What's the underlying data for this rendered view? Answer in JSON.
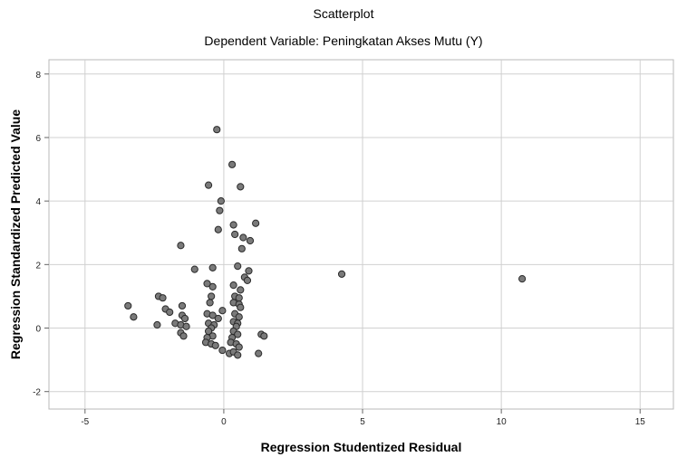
{
  "chart_data": {
    "type": "scatter",
    "title": "Scatterplot",
    "subtitle": "Dependent Variable: Peningkatan Akses Mutu (Y)",
    "xlabel": "Regression Studentized Residual",
    "ylabel": "Regression Standardized Predicted Value",
    "xlim": [
      -6.3,
      16.2
    ],
    "ylim": [
      -2.55,
      8.45
    ],
    "x_ticks": [
      -5,
      0,
      5,
      10,
      15
    ],
    "y_ticks": [
      -2,
      0,
      2,
      4,
      6,
      8
    ],
    "grid": true,
    "point_color": "#7a7a7a",
    "point_edge_color": "#2a2a2a",
    "points": [
      {
        "x": -0.25,
        "y": 6.25
      },
      {
        "x": 0.3,
        "y": 5.15
      },
      {
        "x": -0.55,
        "y": 4.5
      },
      {
        "x": 0.6,
        "y": 4.45
      },
      {
        "x": -0.1,
        "y": 4.0
      },
      {
        "x": -0.15,
        "y": 3.7
      },
      {
        "x": 0.35,
        "y": 3.25
      },
      {
        "x": 1.15,
        "y": 3.3
      },
      {
        "x": -0.2,
        "y": 3.1
      },
      {
        "x": 0.4,
        "y": 2.95
      },
      {
        "x": 0.7,
        "y": 2.85
      },
      {
        "x": 0.95,
        "y": 2.75
      },
      {
        "x": -1.55,
        "y": 2.6
      },
      {
        "x": 0.65,
        "y": 2.5
      },
      {
        "x": -0.4,
        "y": 1.9
      },
      {
        "x": 0.5,
        "y": 1.95
      },
      {
        "x": -1.05,
        "y": 1.85
      },
      {
        "x": 0.9,
        "y": 1.8
      },
      {
        "x": 0.75,
        "y": 1.6
      },
      {
        "x": 0.85,
        "y": 1.5
      },
      {
        "x": 4.25,
        "y": 1.7
      },
      {
        "x": 10.75,
        "y": 1.55
      },
      {
        "x": -0.6,
        "y": 1.4
      },
      {
        "x": 0.35,
        "y": 1.35
      },
      {
        "x": -0.4,
        "y": 1.3
      },
      {
        "x": 0.6,
        "y": 1.2
      },
      {
        "x": -0.45,
        "y": 1.0
      },
      {
        "x": 0.4,
        "y": 1.0
      },
      {
        "x": 0.55,
        "y": 0.95
      },
      {
        "x": -2.35,
        "y": 1.0
      },
      {
        "x": -2.2,
        "y": 0.95
      },
      {
        "x": -3.45,
        "y": 0.7
      },
      {
        "x": -1.5,
        "y": 0.7
      },
      {
        "x": -2.1,
        "y": 0.6
      },
      {
        "x": -1.95,
        "y": 0.5
      },
      {
        "x": -0.5,
        "y": 0.8
      },
      {
        "x": 0.35,
        "y": 0.8
      },
      {
        "x": 0.55,
        "y": 0.75
      },
      {
        "x": -0.05,
        "y": 0.55
      },
      {
        "x": 0.6,
        "y": 0.65
      },
      {
        "x": -0.6,
        "y": 0.45
      },
      {
        "x": -0.4,
        "y": 0.4
      },
      {
        "x": -0.2,
        "y": 0.3
      },
      {
        "x": 0.4,
        "y": 0.45
      },
      {
        "x": 0.55,
        "y": 0.35
      },
      {
        "x": -3.25,
        "y": 0.35
      },
      {
        "x": -1.5,
        "y": 0.4
      },
      {
        "x": -1.4,
        "y": 0.3
      },
      {
        "x": -1.75,
        "y": 0.15
      },
      {
        "x": -1.55,
        "y": 0.1
      },
      {
        "x": -1.35,
        "y": 0.05
      },
      {
        "x": -2.4,
        "y": 0.1
      },
      {
        "x": -0.55,
        "y": 0.15
      },
      {
        "x": -0.35,
        "y": 0.1
      },
      {
        "x": -0.45,
        "y": 0.0
      },
      {
        "x": 0.35,
        "y": 0.2
      },
      {
        "x": 0.5,
        "y": 0.15
      },
      {
        "x": 0.45,
        "y": 0.05
      },
      {
        "x": -1.55,
        "y": -0.15
      },
      {
        "x": -1.45,
        "y": -0.25
      },
      {
        "x": -0.55,
        "y": -0.1
      },
      {
        "x": -0.4,
        "y": -0.25
      },
      {
        "x": -0.6,
        "y": -0.3
      },
      {
        "x": 0.35,
        "y": -0.1
      },
      {
        "x": 0.5,
        "y": -0.2
      },
      {
        "x": 0.3,
        "y": -0.3
      },
      {
        "x": 1.35,
        "y": -0.2
      },
      {
        "x": 1.45,
        "y": -0.25
      },
      {
        "x": -0.65,
        "y": -0.45
      },
      {
        "x": -0.45,
        "y": -0.5
      },
      {
        "x": -0.3,
        "y": -0.55
      },
      {
        "x": 0.25,
        "y": -0.45
      },
      {
        "x": 0.45,
        "y": -0.5
      },
      {
        "x": 0.55,
        "y": -0.6
      },
      {
        "x": -0.05,
        "y": -0.7
      },
      {
        "x": 0.2,
        "y": -0.8
      },
      {
        "x": 0.35,
        "y": -0.75
      },
      {
        "x": 0.5,
        "y": -0.85
      },
      {
        "x": 1.25,
        "y": -0.8
      }
    ]
  }
}
